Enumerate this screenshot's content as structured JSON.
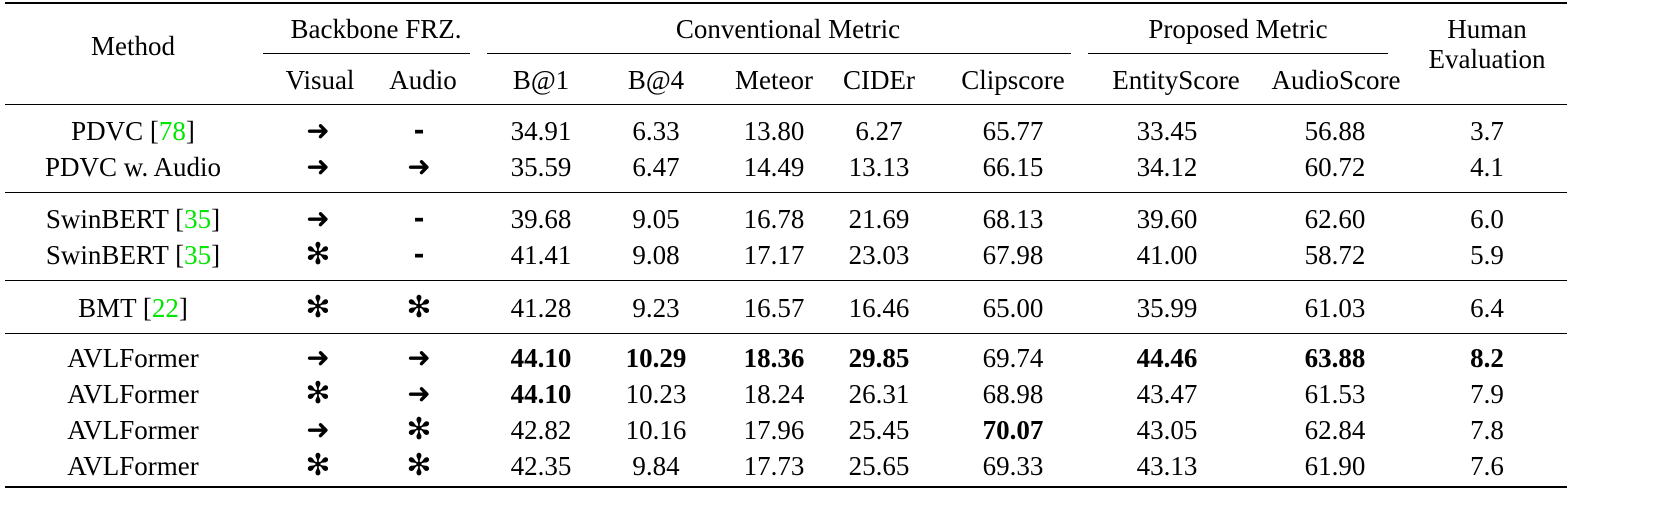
{
  "headers": {
    "method": "Method",
    "backbone_group": "Backbone FRZ.",
    "visual": "Visual",
    "audio": "Audio",
    "conventional_group": "Conventional Metric",
    "b1": "B@1",
    "b4": "B@4",
    "meteor": "Meteor",
    "cider": "CIDEr",
    "clipscore": "Clipscore",
    "proposed_group": "Proposed Metric",
    "entityscore": "EntityScore",
    "audioscore": "AudioScore",
    "human_line1": "Human",
    "human_line2": "Evaluation"
  },
  "rows": [
    {
      "name": "PDVC",
      "cite": "78",
      "visual": "arrow",
      "audio": "dash",
      "values": [
        "34.91",
        "6.33",
        "13.80",
        "6.27",
        "65.77",
        "33.45",
        "56.88",
        "3.7"
      ],
      "bold": []
    },
    {
      "name": "PDVC w. Audio",
      "cite": "",
      "visual": "arrow",
      "audio": "arrow",
      "values": [
        "35.59",
        "6.47",
        "14.49",
        "13.13",
        "66.15",
        "34.12",
        "60.72",
        "4.1"
      ],
      "bold": []
    },
    {
      "name": "SwinBERT",
      "cite": "35",
      "visual": "arrow",
      "audio": "dash",
      "values": [
        "39.68",
        "9.05",
        "16.78",
        "21.69",
        "68.13",
        "39.60",
        "62.60",
        "6.0"
      ],
      "bold": []
    },
    {
      "name": "SwinBERT",
      "cite": "35",
      "visual": "star",
      "audio": "dash",
      "values": [
        "41.41",
        "9.08",
        "17.17",
        "23.03",
        "67.98",
        "41.00",
        "58.72",
        "5.9"
      ],
      "bold": []
    },
    {
      "name": "BMT",
      "cite": "22",
      "visual": "star",
      "audio": "star",
      "values": [
        "41.28",
        "9.23",
        "16.57",
        "16.46",
        "65.00",
        "35.99",
        "61.03",
        "6.4"
      ],
      "bold": []
    },
    {
      "name": "AVLFormer",
      "cite": "",
      "visual": "arrow",
      "audio": "arrow",
      "values": [
        "44.10",
        "10.29",
        "18.36",
        "29.85",
        "69.74",
        "44.46",
        "63.88",
        "8.2"
      ],
      "bold": [
        0,
        1,
        2,
        3,
        5,
        6,
        7
      ]
    },
    {
      "name": "AVLFormer",
      "cite": "",
      "visual": "star",
      "audio": "arrow",
      "values": [
        "44.10",
        "10.23",
        "18.24",
        "26.31",
        "68.98",
        "43.47",
        "61.53",
        "7.9"
      ],
      "bold": [
        0
      ]
    },
    {
      "name": "AVLFormer",
      "cite": "",
      "visual": "arrow",
      "audio": "star",
      "values": [
        "42.82",
        "10.16",
        "17.96",
        "25.45",
        "70.07",
        "43.05",
        "62.84",
        "7.8"
      ],
      "bold": [
        4
      ]
    },
    {
      "name": "AVLFormer",
      "cite": "",
      "visual": "star",
      "audio": "star",
      "values": [
        "42.35",
        "9.84",
        "17.73",
        "25.65",
        "69.33",
        "43.13",
        "61.90",
        "7.6"
      ],
      "bold": []
    }
  ]
}
